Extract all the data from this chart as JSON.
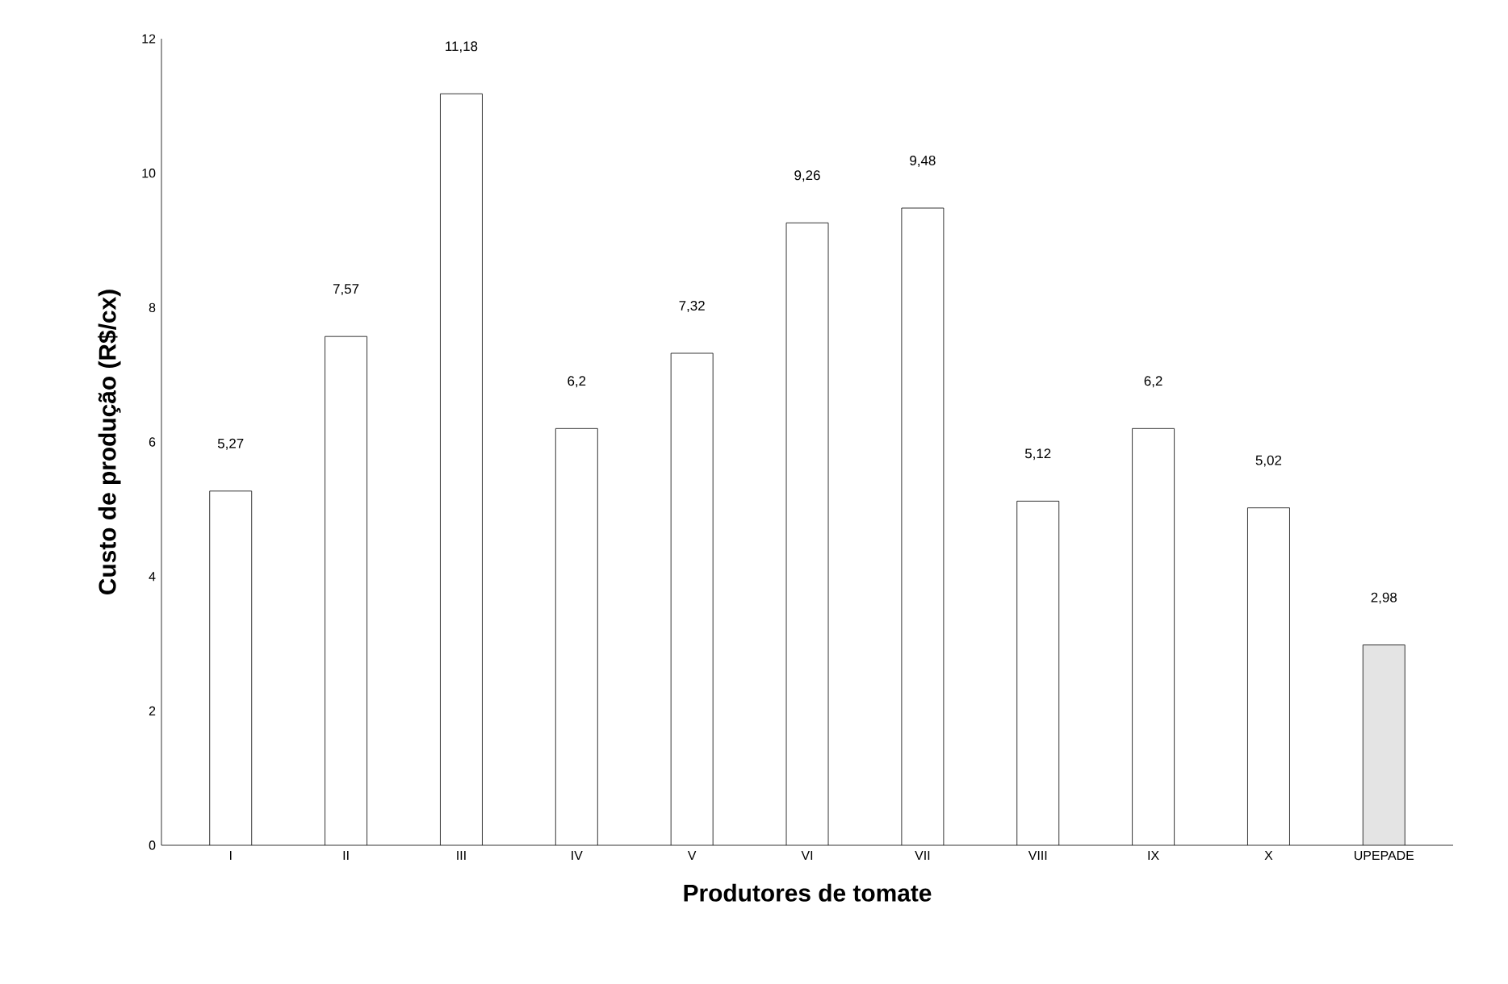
{
  "chart_data": {
    "type": "bar",
    "xlabel": "Produtores de tomate",
    "ylabel": "Custo de produção (R$/cx)",
    "categories": [
      "I",
      "II",
      "III",
      "IV",
      "V",
      "VI",
      "VII",
      "VIII",
      "IX",
      "X",
      "UPEPADE"
    ],
    "values": [
      5.27,
      7.57,
      11.18,
      6.2,
      7.32,
      9.26,
      9.48,
      5.12,
      6.2,
      5.02,
      2.98
    ],
    "value_labels": [
      "5,27",
      "7,57",
      "11,18",
      "6,2",
      "7,32",
      "9,26",
      "9,48",
      "5,12",
      "6,2",
      "5,02",
      "2,98"
    ],
    "colors": [
      "#ffffff",
      "#ffffff",
      "#ffffff",
      "#ffffff",
      "#ffffff",
      "#ffffff",
      "#ffffff",
      "#ffffff",
      "#ffffff",
      "#ffffff",
      "#e4e4e4"
    ],
    "ylim": [
      0,
      12
    ],
    "yticks": [
      0,
      2,
      4,
      6,
      8,
      10,
      12
    ],
    "grid": false
  }
}
